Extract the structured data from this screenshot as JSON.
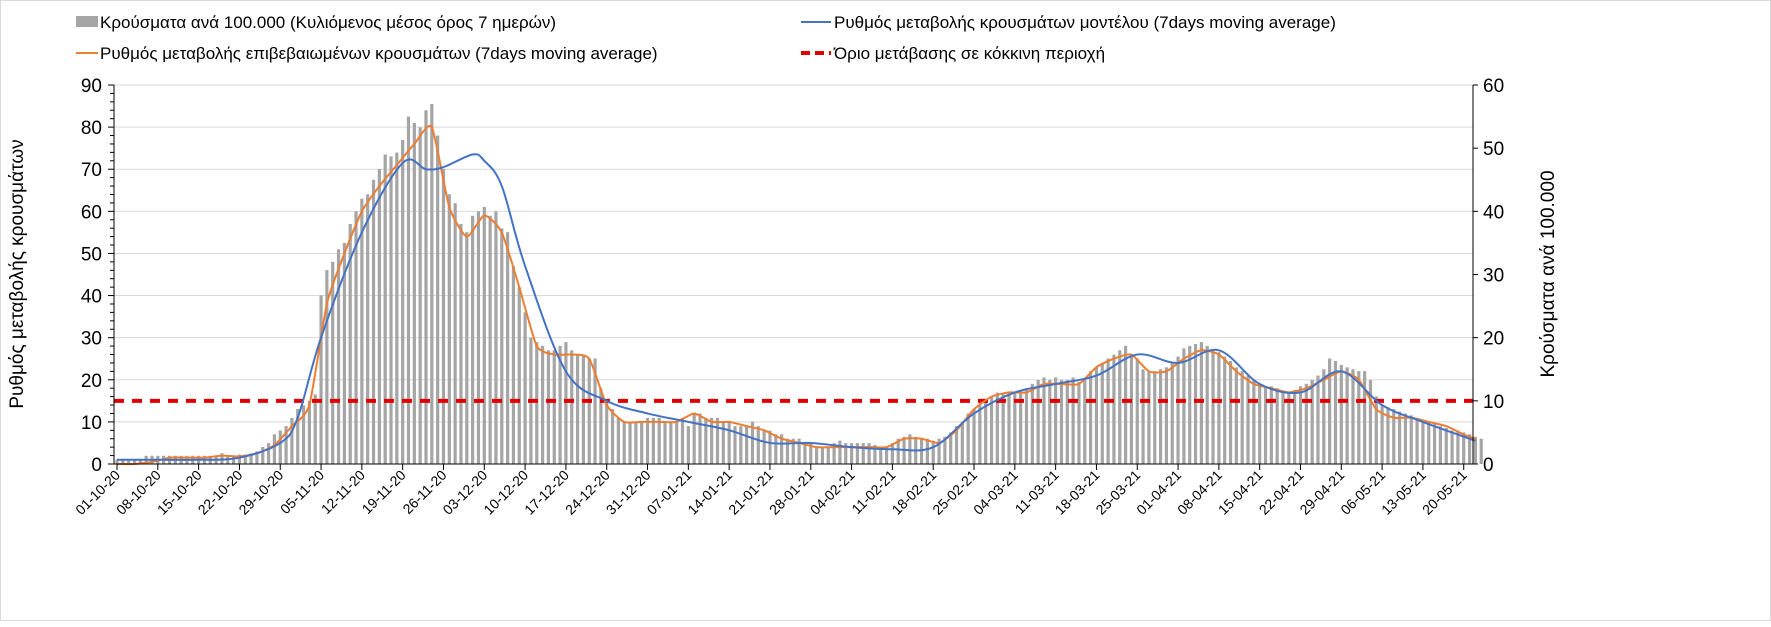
{
  "chart_data": {
    "type": "bar+line",
    "legend": {
      "bars": "Κρούσματα ανά 100.000 (Κυλιόμενος μέσος όρος 7 ημερών)",
      "model": "Ρυθμός μεταβολής κρουσμάτων μοντέλου (7days moving average)",
      "confirmed": "Ρυθμός μεταβολής επιβεβαιωμένων κρουσμάτων (7days moving average)",
      "threshold": "Όριο μετάβασης σε κόκκινη περιοχή",
      "placement": "top"
    },
    "ylabel_left": "Ρυθμός μεταβολής κρουσμάτων",
    "ylabel_right": "Κρούσματα ανά 100.000",
    "ylim_left": [
      0,
      90
    ],
    "ylim_right": [
      0,
      60
    ],
    "yticks_left": [
      "0",
      "10",
      "20",
      "30",
      "40",
      "50",
      "60",
      "70",
      "80",
      "90"
    ],
    "yticks_right": [
      "0",
      "10",
      "20",
      "30",
      "40",
      "50",
      "60"
    ],
    "grid": true,
    "start_date": "01-10-20",
    "x_tick_labels": [
      "01-10-20",
      "08-10-20",
      "15-10-20",
      "22-10-20",
      "29-10-20",
      "05-11-20",
      "12-11-20",
      "19-11-20",
      "26-11-20",
      "03-12-20",
      "10-12-20",
      "17-12-20",
      "24-12-20",
      "31-12-20",
      "07-01-21",
      "14-01-21",
      "21-01-21",
      "28-01-21",
      "04-02-21",
      "11-02-21",
      "18-02-21",
      "25-02-21",
      "04-03-21",
      "11-03-21",
      "18-03-21",
      "25-03-21",
      "01-04-21",
      "08-04-21",
      "15-04-21",
      "22-04-21",
      "29-04-21",
      "06-05-21",
      "13-05-21",
      "20-05-21"
    ],
    "x_tick_interval_days": 7,
    "threshold_left": 15,
    "colors": {
      "bars": "#a5a5a5",
      "model": "#4472c4",
      "confirmed": "#ed7d31",
      "threshold": "#e00000",
      "grid": "#d9d9d9"
    },
    "bars_per_100k_daily": [
      0.7,
      0.7,
      0.7,
      0.7,
      0.7,
      1.3,
      1.3,
      1.3,
      1.3,
      1.3,
      1.3,
      1.3,
      1.3,
      1.3,
      1.3,
      1.3,
      1.3,
      1.3,
      1.7,
      1.3,
      1.3,
      1.5,
      1.5,
      1.7,
      2,
      2.7,
      3.3,
      4.7,
      5.3,
      6,
      7.3,
      8.7,
      9.3,
      10,
      11,
      26.7,
      30.7,
      32,
      34,
      35,
      38,
      40,
      42,
      42.7,
      45,
      46.7,
      49,
      48.7,
      49.3,
      51.3,
      55,
      54,
      53.3,
      56,
      57,
      52,
      46.7,
      42.7,
      41.3,
      38,
      36.7,
      39.3,
      40,
      40.7,
      39.3,
      40,
      37.3,
      36.7,
      31.3,
      28,
      24,
      20,
      19.3,
      18.7,
      18,
      18,
      18.7,
      19.3,
      18,
      17.3,
      17.3,
      16.7,
      16.7,
      12,
      10,
      8.7,
      7.3,
      6.7,
      6.7,
      6.7,
      6.7,
      7.3,
      7.3,
      7.3,
      6.7,
      6.7,
      6.7,
      7.3,
      6,
      8,
      8,
      7.3,
      7.3,
      7.3,
      6.7,
      6.7,
      6,
      6,
      6,
      6.7,
      6,
      5.3,
      5.3,
      4.7,
      4.7,
      4,
      4,
      4,
      3.3,
      3.3,
      2.7,
      2.7,
      2.7,
      3.3,
      3.7,
      3.3,
      3.3,
      3.3,
      3.3,
      3.3,
      3,
      2.7,
      2.7,
      3.3,
      4,
      4.3,
      4.7,
      4.3,
      4,
      4,
      3.7,
      4,
      4.3,
      5,
      6,
      6.7,
      8,
      8.7,
      9.3,
      10,
      10.7,
      11.3,
      11,
      11.3,
      11.3,
      11.3,
      12,
      12.7,
      13.3,
      13.7,
      13.3,
      13.7,
      13.3,
      13.3,
      13.7,
      13,
      13.3,
      14.7,
      15.3,
      16,
      16.7,
      17.3,
      18,
      18.7,
      17.3,
      16.7,
      15,
      14.7,
      14.7,
      15,
      15.3,
      16,
      17,
      18.3,
      18.7,
      19,
      19.3,
      18.7,
      18,
      17.7,
      17,
      16.3,
      15.3,
      14.7,
      14,
      13.3,
      12.7,
      12.3,
      12.3,
      12,
      11.3,
      11.3,
      11.7,
      12.3,
      12.7,
      13.3,
      14,
      15,
      16.7,
      16.3,
      15.7,
      15.3,
      15,
      14.7,
      14.7,
      13.3,
      10.7,
      9.3,
      9,
      8.7,
      8.3,
      8,
      7.7,
      7.3,
      7,
      6.7,
      6.3,
      6,
      5.7,
      5.3,
      5.3,
      5,
      4.7,
      4.3,
      4
    ],
    "confirmed_rate": {
      "day": [
        0,
        3,
        6,
        9,
        12,
        15,
        18,
        21,
        24,
        27,
        30,
        33,
        36,
        39,
        42,
        45,
        48,
        51,
        54,
        57,
        60,
        63,
        66,
        69,
        72,
        75,
        78,
        81,
        84,
        87,
        90,
        93,
        96,
        99,
        102,
        105,
        108,
        111,
        114,
        117,
        120,
        123,
        126,
        129,
        132,
        135,
        138,
        141,
        144,
        147,
        150,
        153,
        156,
        159,
        162,
        165,
        168,
        171,
        174,
        177,
        180,
        183,
        186,
        189,
        192,
        195,
        198,
        201,
        204,
        207,
        210,
        213,
        216,
        219,
        222,
        225,
        228,
        231,
        233
      ],
      "value": [
        0,
        0,
        0.5,
        1.5,
        1.5,
        1.5,
        2,
        1.8,
        2.5,
        4.5,
        9,
        14,
        38,
        50,
        60,
        66,
        71,
        76,
        80,
        61,
        54,
        59,
        55,
        42,
        28,
        26,
        26,
        25,
        14,
        10,
        10,
        10,
        10,
        12,
        10,
        10,
        9,
        8,
        6,
        5,
        4,
        4,
        4,
        4,
        4,
        6,
        6,
        5,
        8,
        13,
        16,
        17,
        17,
        19,
        19,
        19,
        23,
        25,
        26,
        22,
        22,
        25,
        27,
        26,
        22,
        19,
        18,
        17,
        18,
        20,
        22,
        20,
        13,
        11,
        11,
        10,
        9,
        7,
        6
      ]
    },
    "model_rate": {
      "day": [
        0,
        7,
        14,
        21,
        28,
        31,
        35,
        42,
        49,
        53,
        56,
        61,
        63,
        66,
        70,
        77,
        84,
        91,
        98,
        105,
        112,
        119,
        126,
        133,
        140,
        147,
        154,
        161,
        168,
        175,
        182,
        189,
        196,
        203,
        210,
        217,
        224,
        231,
        233
      ],
      "value": [
        1,
        1,
        1,
        1.5,
        5,
        11,
        30,
        55,
        71.5,
        70,
        70.5,
        73.5,
        72,
        66,
        47,
        22,
        15,
        12,
        10,
        8,
        5,
        5,
        4,
        3.5,
        4,
        12,
        17,
        19,
        21,
        26,
        24,
        27,
        19,
        17,
        22,
        14,
        10,
        6.5,
        5.5
      ]
    }
  }
}
